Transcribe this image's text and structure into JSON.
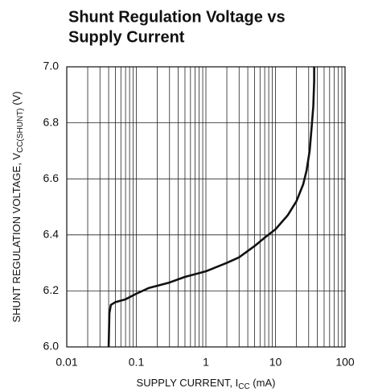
{
  "chart_data": {
    "type": "line",
    "title": [
      "Shunt Regulation Voltage vs",
      "Supply Current"
    ],
    "xlabel": {
      "text": "SUPPLY CURRENT, I",
      "sub": "CC",
      "unit": " (mA)"
    },
    "ylabel": {
      "text": "SHUNT REGULATION VOLTAGE, V",
      "sub": "CC(SHUNT)",
      "unit": " (V)"
    },
    "xscale": "log",
    "xlim": [
      0.01,
      100
    ],
    "ylim": [
      6.0,
      7.0
    ],
    "xticks": [
      0.01,
      0.1,
      1,
      10,
      100
    ],
    "xminorticks": [
      0.02,
      0.03,
      0.04,
      0.05,
      0.06,
      0.07,
      0.08,
      0.09,
      0.2,
      0.3,
      0.4,
      0.5,
      0.6,
      0.7,
      0.8,
      0.9,
      2,
      3,
      4,
      5,
      6,
      7,
      8,
      9,
      20,
      30,
      40,
      50,
      60,
      70,
      80,
      90
    ],
    "yticks": [
      {
        "value": 6.0,
        "label": "6.0"
      },
      6.2,
      6.4,
      6.6,
      6.8,
      {
        "value": 7.0,
        "label": "7.0"
      }
    ],
    "grid": true,
    "series": [
      {
        "color": "#111111",
        "x": [
          0.04,
          0.041,
          0.043,
          0.05,
          0.07,
          0.1,
          0.15,
          0.3,
          0.5,
          1,
          2,
          3,
          5,
          7,
          10,
          15,
          20,
          25,
          28,
          31,
          33,
          35,
          36,
          36
        ],
        "values": [
          6.0,
          6.12,
          6.15,
          6.16,
          6.17,
          6.19,
          6.21,
          6.23,
          6.25,
          6.27,
          6.3,
          6.32,
          6.36,
          6.39,
          6.42,
          6.47,
          6.52,
          6.58,
          6.63,
          6.7,
          6.78,
          6.86,
          6.95,
          7.0
        ]
      }
    ]
  }
}
